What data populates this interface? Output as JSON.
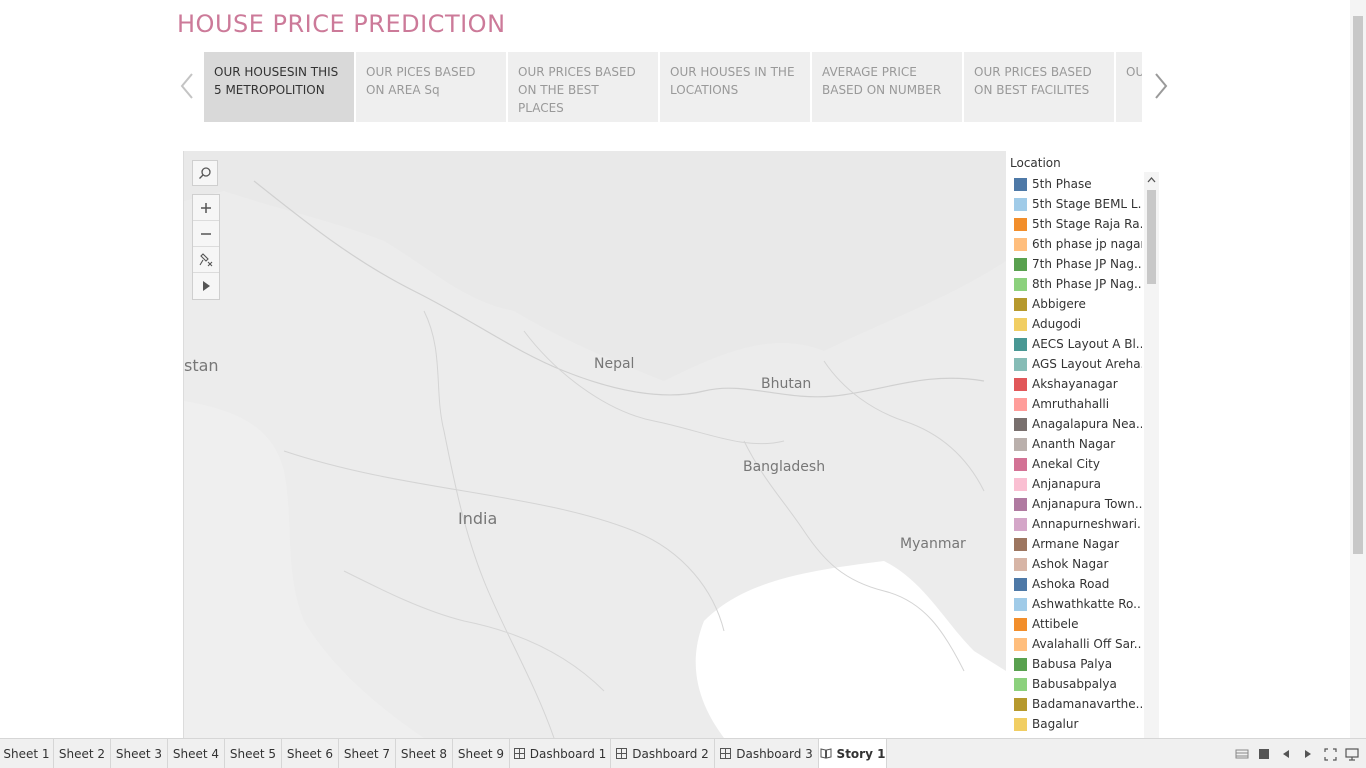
{
  "title": "HOUSE PRICE PREDICTION",
  "story": {
    "points": [
      {
        "label": "OUR HOUSESIN THIS 5 METROPOLITION",
        "active": true
      },
      {
        "label": "OUR PICES BASED ON AREA Sq",
        "active": false
      },
      {
        "label": "OUR PRICES BASED ON THE BEST PLACES",
        "active": false
      },
      {
        "label": "OUR HOUSES IN THE LOCATIONS",
        "active": false
      },
      {
        "label": "AVERAGE PRICE BASED ON NUMBER",
        "active": false
      },
      {
        "label": "OUR PRICES BASED ON BEST FACILITES",
        "active": false
      },
      {
        "label": "OU BSI",
        "active": false
      }
    ]
  },
  "map": {
    "labels": {
      "stan": "stan",
      "nepal": "Nepal",
      "bhutan": "Bhutan",
      "bangladesh": "Bangladesh",
      "india": "India",
      "myanmar": "Myanmar"
    }
  },
  "legend": {
    "title": "Location",
    "items": [
      {
        "label": "5th Phase",
        "color": "#4e79a7"
      },
      {
        "label": "5th Stage BEML L..",
        "color": "#a0cbe8"
      },
      {
        "label": "5th Stage Raja Ra..",
        "color": "#f28e2b"
      },
      {
        "label": "6th phase jp nagar",
        "color": "#ffbe7d"
      },
      {
        "label": "7th Phase JP Nag..",
        "color": "#59a14f"
      },
      {
        "label": "8th Phase JP Nag..",
        "color": "#8cd17d"
      },
      {
        "label": "Abbigere",
        "color": "#b6992d"
      },
      {
        "label": "Adugodi",
        "color": "#f1ce63"
      },
      {
        "label": "AECS Layout A Bl..",
        "color": "#499894"
      },
      {
        "label": "AGS Layout Areha..",
        "color": "#86bcb6"
      },
      {
        "label": "Akshayanagar",
        "color": "#e15759"
      },
      {
        "label": "Amruthahalli",
        "color": "#ff9d9a"
      },
      {
        "label": "Anagalapura Nea..",
        "color": "#79706e"
      },
      {
        "label": "Ananth Nagar",
        "color": "#bab0ac"
      },
      {
        "label": "Anekal City",
        "color": "#d37295"
      },
      {
        "label": "Anjanapura",
        "color": "#fabfd2"
      },
      {
        "label": "Anjanapura Town..",
        "color": "#b07aa1"
      },
      {
        "label": "Annapurneshwari..",
        "color": "#d4a6c8"
      },
      {
        "label": "Armane Nagar",
        "color": "#9d7660"
      },
      {
        "label": "Ashok Nagar",
        "color": "#d7b5a6"
      },
      {
        "label": "Ashoka Road",
        "color": "#4e79a7"
      },
      {
        "label": "Ashwathkatte Ro..",
        "color": "#a0cbe8"
      },
      {
        "label": "Attibele",
        "color": "#f28e2b"
      },
      {
        "label": "Avalahalli Off Sar..",
        "color": "#ffbe7d"
      },
      {
        "label": "Babusa Palya",
        "color": "#59a14f"
      },
      {
        "label": "Babusabpalya",
        "color": "#8cd17d"
      },
      {
        "label": "Badamanavarthe..",
        "color": "#b6992d"
      },
      {
        "label": "Bagalur",
        "color": "#f1ce63"
      },
      {
        "label": "",
        "color": "#499894"
      }
    ]
  },
  "tabs": [
    {
      "label": "Sheet 1",
      "icon": "none",
      "active": false
    },
    {
      "label": "Sheet 2",
      "icon": "none",
      "active": false
    },
    {
      "label": "Sheet 3",
      "icon": "none",
      "active": false
    },
    {
      "label": "Sheet 4",
      "icon": "none",
      "active": false
    },
    {
      "label": "Sheet 5",
      "icon": "none",
      "active": false
    },
    {
      "label": "Sheet 6",
      "icon": "none",
      "active": false
    },
    {
      "label": "Sheet 7",
      "icon": "none",
      "active": false
    },
    {
      "label": "Sheet 8",
      "icon": "none",
      "active": false
    },
    {
      "label": "Sheet 9",
      "icon": "none",
      "active": false
    },
    {
      "label": "Dashboard 1",
      "icon": "dashboard-icon",
      "active": false
    },
    {
      "label": "Dashboard 2",
      "icon": "dashboard-icon",
      "active": false
    },
    {
      "label": "Dashboard 3",
      "icon": "dashboard-icon",
      "active": false
    },
    {
      "label": "Story 1",
      "icon": "story-icon",
      "active": true
    }
  ],
  "colors": {
    "title": "#cc7a99",
    "map_background": "#ececec",
    "active_story_point": "#d9d9d9"
  }
}
